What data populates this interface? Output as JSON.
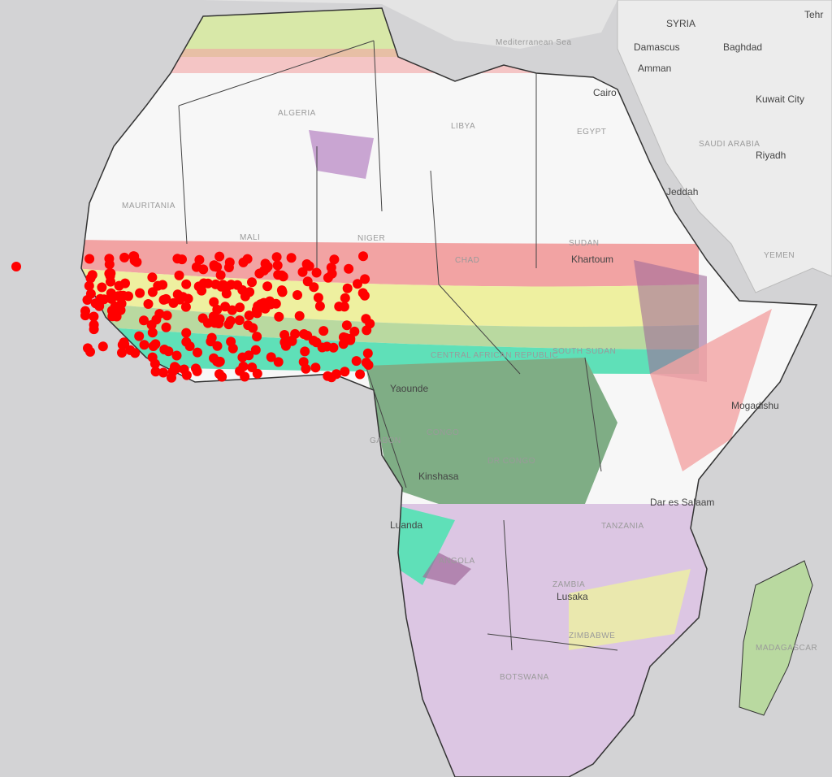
{
  "map": {
    "labels": [
      "SYRIA",
      "Damascus",
      "Baghdad",
      "Amman",
      "Tehr",
      "Kuwait City",
      "SAUDI ARABIA",
      "Riyadh",
      "Jeddah",
      "YEMEN",
      "Cairo",
      "EGYPT",
      "LIBYA",
      "ALGERIA",
      "MAURITANIA",
      "MALI",
      "NIGER",
      "CHAD",
      "SUDAN",
      "Khartoum",
      "CENTRAL AFRICAN REPUBLIC",
      "SOUTH SUDAN",
      "Yaounde",
      "GABON",
      "CONGO",
      "DR CONGO",
      "Kinshasa",
      "Luanda",
      "ANGOLA",
      "ZAMBIA",
      "Lusaka",
      "TANZANIA",
      "Dar es Salaam",
      "Mogadishu",
      "BOTSWANA",
      "ZIMBABWE",
      "MADAGASCAR",
      "Mediterranean Sea"
    ]
  }
}
